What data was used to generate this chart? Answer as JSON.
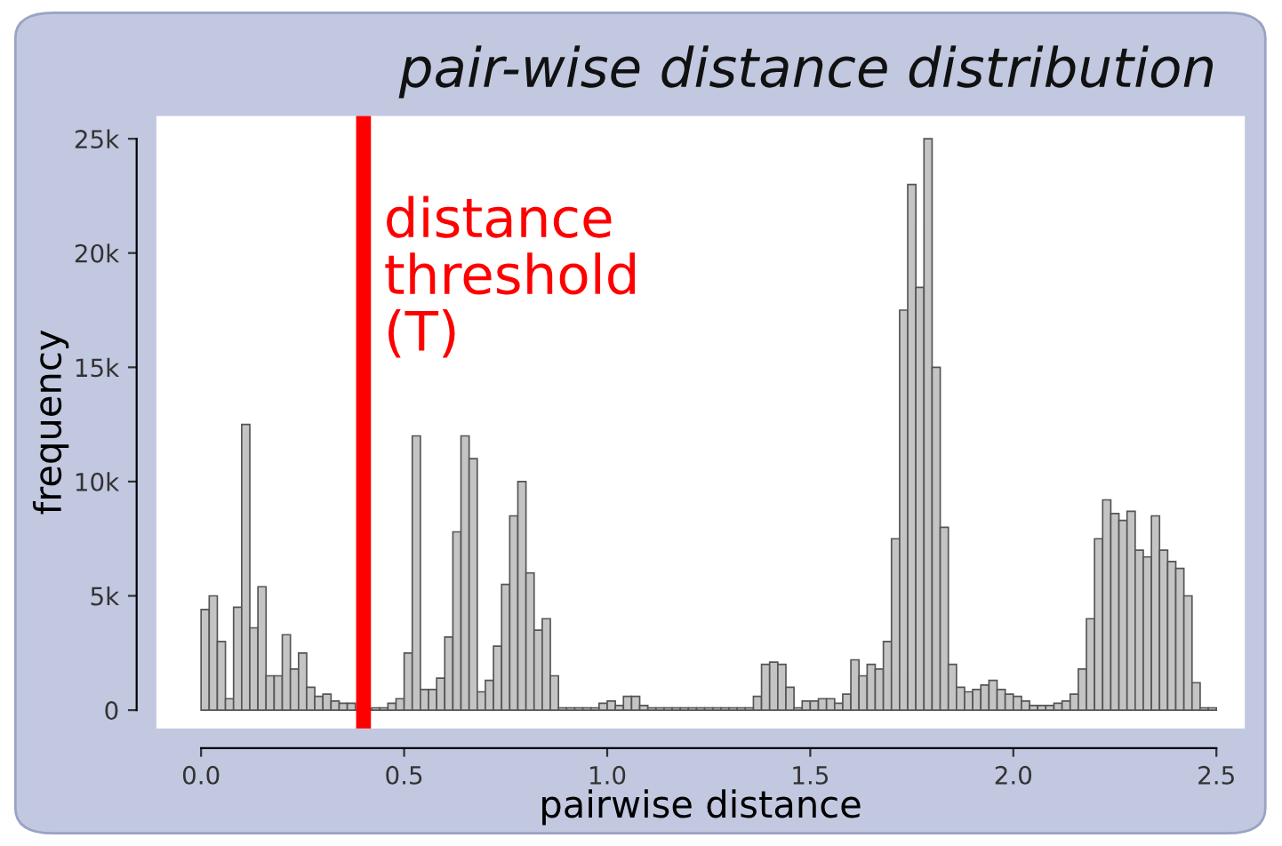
{
  "chart_data": {
    "type": "histogram",
    "title": "pair-wise distance distribution",
    "xlabel": "pairwise distance",
    "ylabel": "frequency",
    "bins": [
      0,
      0.02,
      0.04,
      0.06,
      0.08,
      0.1,
      0.12,
      0.14,
      0.16,
      0.18,
      0.2,
      0.22,
      0.24,
      0.26,
      0.28,
      0.3,
      0.32,
      0.34,
      0.36,
      0.38,
      0.4,
      0.42,
      0.44,
      0.46,
      0.48,
      0.5,
      0.52,
      0.54,
      0.56,
      0.58,
      0.6,
      0.62,
      0.64,
      0.66,
      0.68,
      0.7,
      0.72,
      0.74,
      0.76,
      0.78,
      0.8,
      0.82,
      0.84,
      0.86,
      0.88,
      0.9,
      0.92,
      0.94,
      0.96,
      0.98,
      1.0,
      1.02,
      1.04,
      1.06,
      1.08,
      1.1,
      1.12,
      1.14,
      1.16,
      1.18,
      1.2,
      1.22,
      1.24,
      1.26,
      1.28,
      1.3,
      1.32,
      1.34,
      1.36,
      1.38,
      1.4,
      1.42,
      1.44,
      1.46,
      1.48,
      1.5,
      1.52,
      1.54,
      1.56,
      1.58,
      1.6,
      1.62,
      1.64,
      1.66,
      1.68,
      1.7,
      1.72,
      1.74,
      1.76,
      1.78,
      1.8,
      1.82,
      1.84,
      1.86,
      1.88,
      1.9,
      1.92,
      1.94,
      1.96,
      1.98,
      2.0,
      2.02,
      2.04,
      2.06,
      2.08,
      2.1,
      2.12,
      2.14,
      2.16,
      2.18,
      2.2,
      2.22,
      2.24,
      2.26,
      2.28,
      2.3,
      2.32,
      2.34,
      2.36,
      2.38,
      2.4,
      2.42,
      2.44,
      2.46,
      2.48,
      2.5
    ],
    "values": [
      4400,
      5000,
      3000,
      500,
      4500,
      12500,
      3600,
      5400,
      1500,
      1500,
      3300,
      1800,
      2500,
      1000,
      600,
      700,
      400,
      300,
      300,
      null,
      null,
      100,
      100,
      300,
      500,
      2500,
      12000,
      900,
      900,
      1400,
      3200,
      7800,
      12000,
      11000,
      800,
      1300,
      2800,
      5500,
      8500,
      10000,
      6000,
      3500,
      4000,
      1500,
      100,
      100,
      100,
      100,
      100,
      300,
      400,
      200,
      600,
      600,
      200,
      100,
      100,
      100,
      100,
      100,
      100,
      100,
      100,
      100,
      100,
      100,
      100,
      100,
      600,
      2000,
      2100,
      2000,
      1000,
      100,
      400,
      400,
      500,
      500,
      300,
      700,
      2200,
      1500,
      2000,
      1800,
      3000,
      7500,
      17500,
      23000,
      18500,
      25000,
      15000,
      8000,
      2000,
      1000,
      800,
      900,
      1100,
      1300,
      900,
      700,
      600,
      400,
      200,
      200,
      200,
      300,
      400,
      700,
      1800,
      4000,
      7500,
      9200,
      8600,
      8300,
      8700,
      7000,
      6700,
      8500,
      7000,
      6500,
      6200,
      5000,
      1200,
      100,
      100
    ],
    "color": "#c4c4c4",
    "xlim": [
      -0.11,
      2.57
    ],
    "ylim": [
      -800,
      26000
    ],
    "xticks": [
      {
        "value": 0,
        "label": "0.0"
      },
      0.5,
      {
        "value": 1,
        "label": "1.0"
      },
      1.5,
      {
        "value": 2,
        "label": "2.0"
      },
      2.5
    ],
    "yticks": [
      0,
      {
        "value": 5000,
        "label": "5k"
      },
      {
        "value": 10000,
        "label": "10k"
      },
      {
        "value": 15000,
        "label": "15k"
      },
      {
        "value": 20000,
        "label": "20k"
      },
      {
        "value": 25000,
        "label": "25k"
      }
    ],
    "ref_lines": [
      {
        "axis": "x",
        "value": 0.4,
        "label": "distance\nthreshold\n(T)",
        "color": "#ff0000"
      }
    ],
    "grid": false
  }
}
